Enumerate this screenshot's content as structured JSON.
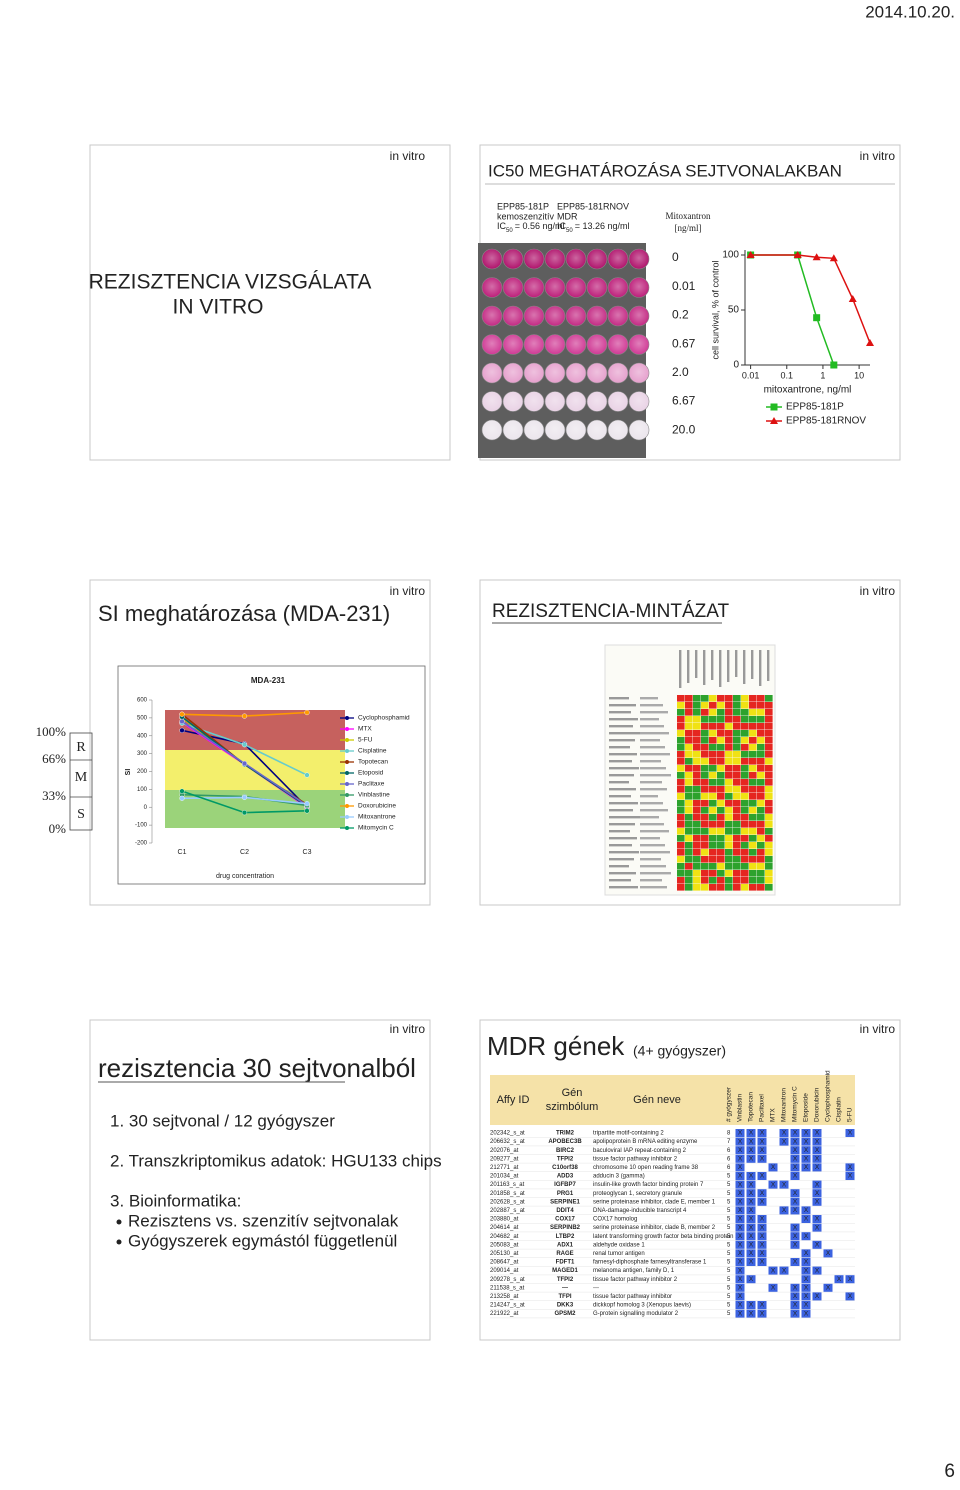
{
  "date": "2014.10.20.",
  "page_number": "6",
  "slides": [
    {
      "tag": "in vitro",
      "title": [
        "REZISZTENCIA VIZSGÁLATA",
        "IN VITRO"
      ]
    },
    {
      "tag": "in vitro",
      "title": "IC50 MEGHATÁROZÁSA SEJTVONALAKBAN",
      "cell_lines": [
        {
          "name": "EPP85-181P",
          "type": "kemoszenzitív",
          "ic_label": "IC",
          "ic_sub": "50",
          "ic_value": "= 0.56 ng/ml"
        },
        {
          "name": "EPP85-181RNOV",
          "type": "MDR",
          "ic_label": "IC",
          "ic_sub": "50",
          "ic_value": "= 13.26 ng/ml"
        }
      ],
      "drug": "Mitoxantron",
      "unit": "[ng/ml]",
      "concentrations": [
        "0",
        "0.01",
        "0.2",
        "0.67",
        "2.0",
        "6.67",
        "20.0"
      ],
      "chart_data": {
        "type": "line",
        "x": [
          0.01,
          0.2,
          0.67,
          2,
          6.67,
          20
        ],
        "log_x": true,
        "ylabel": "cell survival, % of control",
        "xlabel": "mitoxantrone, ng/ml",
        "xlim": [
          0.007,
          20
        ],
        "xticks": [
          0.01,
          0.1,
          1,
          10
        ],
        "ylim": [
          0,
          100
        ],
        "yticks": [
          0,
          50,
          100
        ],
        "series": [
          {
            "name": "EPP85-181P",
            "color": "#22bb22",
            "marker": "square",
            "values": [
              100,
              100,
              43,
              0,
              null,
              null
            ]
          },
          {
            "name": "EPP85-181RNOV",
            "color": "#dd1111",
            "marker": "triangle",
            "values": [
              100,
              100,
              98,
              97,
              60,
              20
            ]
          }
        ]
      }
    },
    {
      "tag": "in vitro",
      "title": "SI meghatározása (MDA-231)",
      "scale": {
        "percents": [
          "100%",
          "66%",
          "33%",
          "0%"
        ],
        "levels": [
          "R",
          "M",
          "S"
        ]
      },
      "chart_data": {
        "type": "line",
        "title": "MDA-231",
        "categories": [
          "C1",
          "C2",
          "C3"
        ],
        "ylabel": "SI",
        "xlabel": "drug concentration",
        "ylim": [
          -200,
          600
        ],
        "yticks": [
          -200,
          -100,
          0,
          100,
          200,
          300,
          400,
          500,
          600
        ],
        "series": [
          {
            "name": "Cyclophosphamid",
            "color": "#000080",
            "values": [
              430,
              355,
              0
            ]
          },
          {
            "name": "MTX",
            "color": "#ff00ff",
            "values": [
              475,
              240,
              0
            ]
          },
          {
            "name": "5-FU",
            "color": "#cccc00",
            "values": [
              500,
              240,
              10
            ]
          },
          {
            "name": "Cisplatine",
            "color": "#66cccc",
            "values": [
              470,
              350,
              180
            ]
          },
          {
            "name": "Topotecan",
            "color": "#993300",
            "values": [
              520,
              240,
              15
            ]
          },
          {
            "name": "Etoposid",
            "color": "#006666",
            "values": [
              505,
              240,
              5
            ]
          },
          {
            "name": "Paclitaxe",
            "color": "#6666cc",
            "values": [
              480,
              245,
              10
            ]
          },
          {
            "name": "Vinblastine",
            "color": "#339966",
            "values": [
              70,
              60,
              10
            ]
          },
          {
            "name": "Doxorubicine",
            "color": "#ff9900",
            "values": [
              520,
              510,
              530
            ]
          },
          {
            "name": "Mitoxantrone",
            "color": "#99ccff",
            "values": [
              50,
              55,
              20
            ]
          },
          {
            "name": "Mitomycin C",
            "color": "#009966",
            "values": [
              90,
              -30,
              -20
            ]
          }
        ]
      }
    },
    {
      "tag": "in vitro",
      "title": "REZISZTENCIA-MINTÁZAT"
    },
    {
      "tag": "in vitro",
      "title": "rezisztencia 30 sejtvonalból",
      "items": [
        "1. 30 sejtvonal / 12 gyógyszer",
        "2. Transzkriptomikus adatok: HGU133 chips",
        "3. Bioinformatika:"
      ],
      "bullets": [
        "Rezisztens vs. szenzitív sejtvonalak",
        "Gyógyszerek egymástól függetlenül"
      ]
    },
    {
      "tag": "in vitro",
      "title": "MDR gének",
      "subtitle": "(4+ gyógyszer)",
      "table": {
        "header": {
          "affy": "Affy ID",
          "symbol": [
            "Gén",
            "szimbólum"
          ],
          "name": "Gén neve",
          "count": "# gyógyszer",
          "drugs": [
            "Vinblastin",
            "Topotecan",
            "Paclitaxel",
            "MTX",
            "Mitoxantron",
            "Mitomycin C",
            "Etoposide",
            "Doxorubicin",
            "Cyclophosphamid",
            "Cisplatin",
            "5-FU"
          ]
        },
        "rows": [
          {
            "affy": "202342_s_at",
            "symbol": "TRIM2",
            "name": "tripartite motif-containing 2",
            "count": 8,
            "cells": [
              "X",
              "X",
              "X",
              null,
              "X",
              "X",
              "X",
              "X",
              null,
              null,
              "X"
            ]
          },
          {
            "affy": "206632_s_at",
            "symbol": "APOBEC3B",
            "name": "apolipoprotein B mRNA editing enzyme",
            "count": 7,
            "cells": [
              "X",
              "X",
              "X",
              null,
              "X",
              "X",
              "X",
              "X",
              null,
              null,
              null
            ]
          },
          {
            "affy": "202076_at",
            "symbol": "BIRC2",
            "name": "baculoviral IAP repeat-containing 2",
            "count": 6,
            "cells": [
              "X",
              "X",
              "X",
              null,
              null,
              "X",
              "X",
              "X",
              null,
              null,
              null
            ]
          },
          {
            "affy": "209277_at",
            "symbol": "TFPI2",
            "name": "tissue factor pathway inhibitor 2",
            "count": 6,
            "cells": [
              "X",
              "X",
              "X",
              null,
              null,
              "X",
              "X",
              "X",
              null,
              null,
              null
            ]
          },
          {
            "affy": "212771_at",
            "symbol": "C10orf38",
            "name": "chromosome 10 open reading frame 38",
            "count": 6,
            "cells": [
              "X",
              null,
              null,
              "X",
              null,
              "X",
              "X",
              "X",
              null,
              null,
              "X"
            ]
          },
          {
            "affy": "201034_at",
            "symbol": "ADD3",
            "name": "adducin 3 (gamma)",
            "count": 5,
            "cells": [
              "X",
              "X",
              "X",
              null,
              null,
              "X",
              null,
              null,
              null,
              null,
              "X"
            ]
          },
          {
            "affy": "201163_s_at",
            "symbol": "IGFBP7",
            "name": "insulin-like growth factor binding protein 7",
            "count": 5,
            "cells": [
              "X",
              "X",
              null,
              "X",
              "X",
              null,
              null,
              "X",
              null,
              null,
              null
            ]
          },
          {
            "affy": "201858_s_at",
            "symbol": "PRG1",
            "name": "proteoglycan 1, secretory granule",
            "count": 5,
            "cells": [
              "X",
              "X",
              "X",
              null,
              null,
              "X",
              null,
              "X",
              null,
              null,
              null
            ]
          },
          {
            "affy": "202628_s_at",
            "symbol": "SERPINE1",
            "name": "serine proteinase inhibitor, clade E, member 1",
            "count": 5,
            "cells": [
              "X",
              "X",
              "X",
              null,
              null,
              "X",
              null,
              "X",
              null,
              null,
              null
            ]
          },
          {
            "affy": "202887_s_at",
            "symbol": "DDIT4",
            "name": "DNA-damage-inducible transcript 4",
            "count": 5,
            "cells": [
              "X",
              "X",
              null,
              null,
              "X",
              "X",
              "X",
              null,
              null,
              null,
              null
            ]
          },
          {
            "affy": "203880_at",
            "symbol": "COX17",
            "name": "COX17 homolog",
            "count": 5,
            "cells": [
              "X",
              "X",
              "X",
              null,
              null,
              null,
              "X",
              "X",
              null,
              null,
              null
            ]
          },
          {
            "affy": "204614_at",
            "symbol": "SERPINB2",
            "name": "serine proteinase inhibitor, clade B, member 2",
            "count": 5,
            "cells": [
              "X",
              "X",
              "X",
              null,
              null,
              "X",
              null,
              "X",
              null,
              null,
              null
            ]
          },
          {
            "affy": "204682_at",
            "symbol": "LTBP2",
            "name": "latent transforming growth factor beta binding protein 2",
            "count": 5,
            "cells": [
              "X",
              "X",
              "X",
              null,
              null,
              "X",
              "X",
              null,
              null,
              null,
              null
            ]
          },
          {
            "affy": "205083_at",
            "symbol": "ADX1",
            "name": "aldehyde oxidase 1",
            "count": 5,
            "cells": [
              "X",
              "X",
              "X",
              null,
              null,
              "X",
              null,
              "X",
              null,
              null,
              null
            ]
          },
          {
            "affy": "205130_at",
            "symbol": "RAGE",
            "name": "renal tumor antigen",
            "count": 5,
            "cells": [
              "X",
              "X",
              "X",
              null,
              null,
              null,
              "X",
              null,
              "X",
              null,
              null
            ]
          },
          {
            "affy": "208647_at",
            "symbol": "FDFT1",
            "name": "farnesyl-diphosphate farnesyltransferase 1",
            "count": 5,
            "cells": [
              "X",
              "X",
              "X",
              null,
              null,
              "X",
              "X",
              null,
              null,
              null,
              null
            ]
          },
          {
            "affy": "209014_at",
            "symbol": "MAGED1",
            "name": "melanoma antigen, family D, 1",
            "count": 5,
            "cells": [
              "X",
              null,
              null,
              "X",
              "X",
              null,
              "X",
              "X",
              null,
              null,
              null
            ]
          },
          {
            "affy": "209278_s_at",
            "symbol": "TFPI2",
            "name": "tissue factor pathway inhibitor 2",
            "count": 5,
            "cells": [
              "X",
              "X",
              null,
              null,
              null,
              null,
              "X",
              null,
              null,
              "X",
              "X"
            ]
          },
          {
            "affy": "211538_s_at",
            "symbol": "---",
            "name": "---",
            "count": 5,
            "cells": [
              "X",
              null,
              null,
              "X",
              null,
              "X",
              "X",
              null,
              "X",
              null,
              null
            ]
          },
          {
            "affy": "213258_at",
            "symbol": "TFPI",
            "name": "tissue factor pathway inhibitor",
            "count": 5,
            "cells": [
              "X",
              null,
              null,
              null,
              null,
              "X",
              "X",
              "X",
              null,
              null,
              "X"
            ]
          },
          {
            "affy": "214247_s_at",
            "symbol": "DKK3",
            "name": "dickkopf homolog 3 (Xenopus laevis)",
            "count": 5,
            "cells": [
              "X",
              "X",
              "X",
              null,
              null,
              "X",
              "X",
              null,
              null,
              null,
              null
            ]
          },
          {
            "affy": "221922_at",
            "symbol": "GPSM2",
            "name": "G-protein signalling modulator 2",
            "count": 5,
            "cells": [
              "X",
              "X",
              "X",
              null,
              null,
              "X",
              "X",
              null,
              null,
              null,
              null
            ]
          }
        ]
      }
    }
  ]
}
